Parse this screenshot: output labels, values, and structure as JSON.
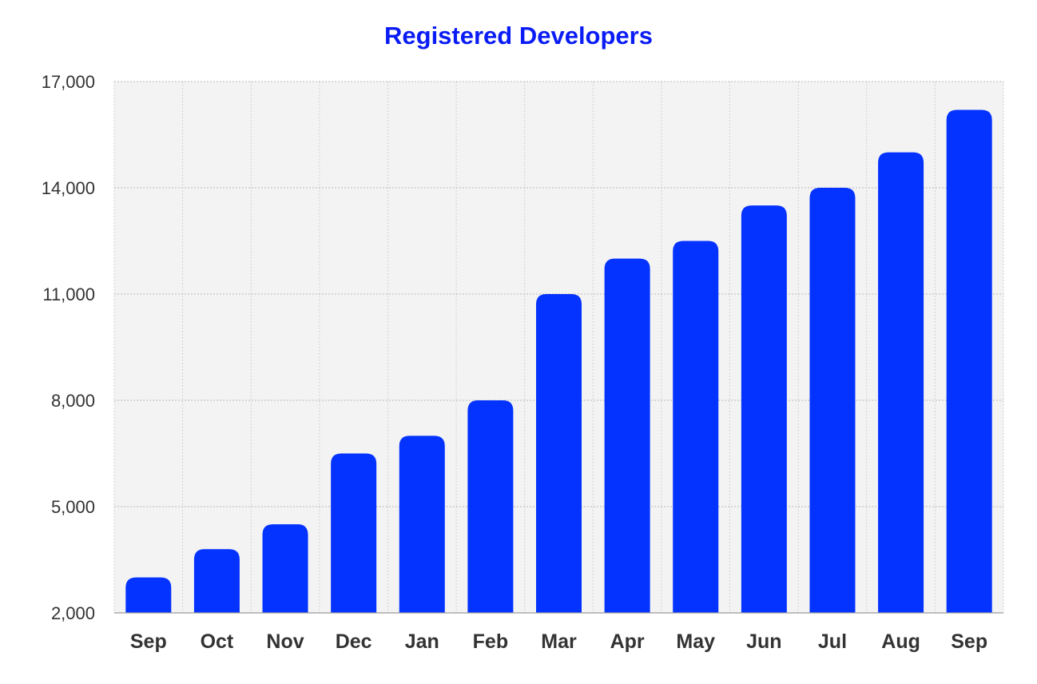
{
  "chart_data": {
    "type": "bar",
    "title": "Registered Developers",
    "xlabel": "",
    "ylabel": "",
    "categories": [
      "Sep",
      "Oct",
      "Nov",
      "Dec",
      "Jan",
      "Feb",
      "Mar",
      "Apr",
      "May",
      "Jun",
      "Jul",
      "Aug",
      "Sep"
    ],
    "values": [
      3000,
      3800,
      4500,
      6500,
      7000,
      8000,
      11000,
      12000,
      12500,
      13500,
      14000,
      15000,
      16200
    ],
    "ylim": [
      2000,
      17000
    ],
    "yticks": [
      2000,
      5000,
      8000,
      11000,
      14000,
      17000
    ],
    "ytick_labels": [
      "2,000",
      "5,000",
      "8,000",
      "11,000",
      "14,000",
      "17,000"
    ],
    "grid": true,
    "bar_color": "#0433ff",
    "title_color": "#0a1cf5",
    "plot_background": "#f3f3f3"
  }
}
